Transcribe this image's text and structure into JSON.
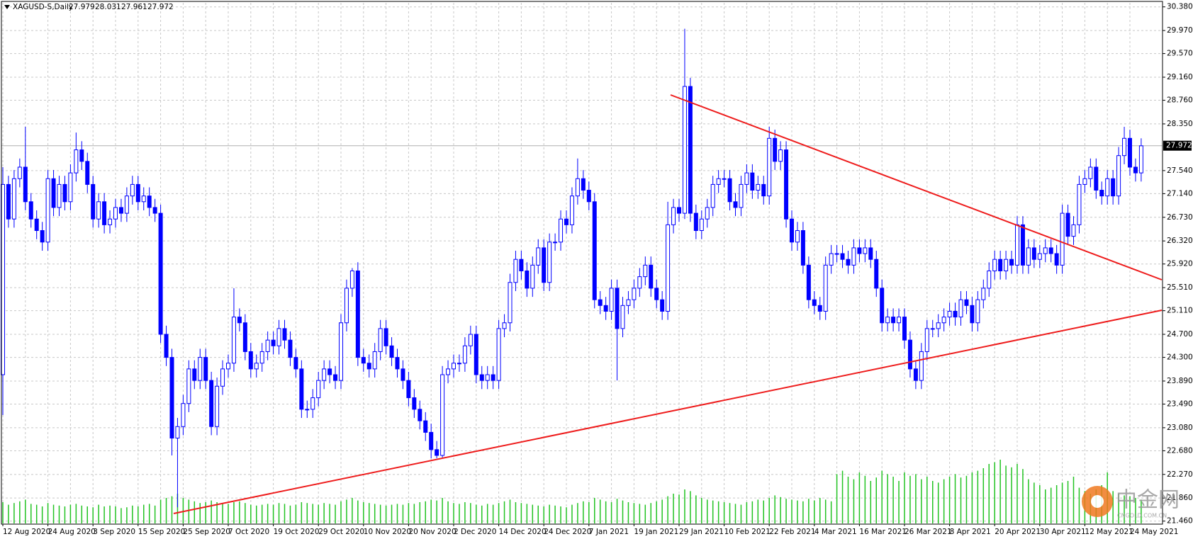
{
  "chart_data": {
    "type": "candlestick",
    "title": "XAGUSD-S,Daily",
    "header_values": [
      27.979,
      28.031,
      27.961,
      27.972
    ],
    "last_price": 27.972,
    "watermark": "中金网",
    "watermark_sub": "CNGOLD.COM.CN",
    "grid": true,
    "colors": {
      "up_body": "#ffffff",
      "down_body": "#0000ff",
      "wick": "#0000ff",
      "volume": "#22c322",
      "last_line": "#b0b0b0"
    },
    "ylim": [
      21.42,
      30.45
    ],
    "yticks": [
      {
        "value": 30.38,
        "label": "30.380"
      },
      {
        "value": 29.97,
        "label": "29.970"
      },
      {
        "value": 29.57,
        "label": "29.570"
      },
      {
        "value": 29.16,
        "label": "29.160"
      },
      {
        "value": 28.76,
        "label": "28.760"
      },
      {
        "value": 28.35,
        "label": "28.350"
      },
      {
        "value": 27.54,
        "label": "27.540"
      },
      {
        "value": 27.14,
        "label": "27.140"
      },
      {
        "value": 26.73,
        "label": "26.730"
      },
      {
        "value": 26.32,
        "label": "26.320"
      },
      {
        "value": 25.92,
        "label": "25.920"
      },
      {
        "value": 25.51,
        "label": "25.510"
      },
      {
        "value": 25.11,
        "label": "25.110"
      },
      {
        "value": 24.7,
        "label": "24.700"
      },
      {
        "value": 24.3,
        "label": "24.300"
      },
      {
        "value": 23.89,
        "label": "23.890"
      },
      {
        "value": 23.49,
        "label": "23.490"
      },
      {
        "value": 23.08,
        "label": "23.080"
      },
      {
        "value": 22.68,
        "label": "22.680"
      },
      {
        "value": 22.27,
        "label": "22.270"
      },
      {
        "value": 21.86,
        "label": "21.860"
      },
      {
        "value": 21.46,
        "label": "21.460"
      }
    ],
    "categories": [
      "12 Aug 2020",
      null,
      null,
      null,
      null,
      null,
      null,
      null,
      "24 Aug 2020",
      null,
      null,
      null,
      null,
      null,
      null,
      null,
      "3 Sep 2020",
      null,
      null,
      null,
      null,
      null,
      null,
      null,
      "15 Sep 2020",
      null,
      null,
      null,
      null,
      null,
      null,
      null,
      "25 Sep 2020",
      null,
      null,
      null,
      null,
      null,
      null,
      null,
      "7 Oct 2020",
      null,
      null,
      null,
      null,
      null,
      null,
      null,
      "19 Oct 2020",
      null,
      null,
      null,
      null,
      null,
      null,
      null,
      "29 Oct 2020",
      null,
      null,
      null,
      null,
      null,
      null,
      null,
      "10 Nov 2020",
      null,
      null,
      null,
      null,
      null,
      null,
      null,
      "20 Nov 2020",
      null,
      null,
      null,
      null,
      null,
      null,
      null,
      "2 Dec 2020",
      null,
      null,
      null,
      null,
      null,
      null,
      null,
      "14 Dec 2020",
      null,
      null,
      null,
      null,
      null,
      null,
      null,
      "24 Dec 2020",
      null,
      null,
      null,
      null,
      null,
      null,
      null,
      "7 Jan 2021",
      null,
      null,
      null,
      null,
      null,
      null,
      null,
      "19 Jan 2021",
      null,
      null,
      null,
      null,
      null,
      null,
      null,
      "29 Jan 2021",
      null,
      null,
      null,
      null,
      null,
      null,
      null,
      "10 Feb 2021",
      null,
      null,
      null,
      null,
      null,
      null,
      null,
      "22 Feb 2021",
      null,
      null,
      null,
      null,
      null,
      null,
      null,
      "4 Mar 2021",
      null,
      null,
      null,
      null,
      null,
      null,
      null,
      "16 Mar 2021",
      null,
      null,
      null,
      null,
      null,
      null,
      null,
      "26 Mar 2021",
      null,
      null,
      null,
      null,
      null,
      null,
      null,
      "8 Apr 2021",
      null,
      null,
      null,
      null,
      null,
      null,
      null,
      "20 Apr 2021",
      null,
      null,
      null,
      null,
      null,
      null,
      null,
      "30 Apr 2021",
      null,
      null,
      null,
      null,
      null,
      null,
      null,
      "12 May 2021",
      null,
      null,
      null,
      null,
      null,
      null,
      null,
      "24 May 2021",
      null,
      null
    ],
    "open": [
      24.0,
      27.3,
      26.7,
      27.4,
      27.6,
      27.0,
      26.7,
      26.5,
      26.3,
      27.4,
      26.9,
      27.3,
      27.0,
      27.5,
      27.9,
      27.7,
      27.3,
      26.7,
      27.0,
      26.6,
      26.7,
      26.9,
      26.8,
      27.1,
      27.3,
      27.0,
      27.1,
      26.9,
      26.8,
      24.7,
      24.3,
      22.9,
      23.1,
      23.5,
      24.1,
      23.9,
      24.3,
      23.9,
      23.1,
      23.8,
      24.1,
      24.2,
      25.0,
      24.9,
      24.4,
      24.1,
      24.2,
      24.4,
      24.6,
      24.5,
      24.8,
      24.6,
      24.3,
      24.1,
      23.4,
      23.4,
      23.6,
      23.9,
      24.1,
      24.0,
      23.9,
      24.9,
      25.5,
      25.8,
      24.3,
      24.2,
      24.1,
      24.4,
      24.8,
      24.5,
      24.3,
      24.1,
      23.9,
      23.6,
      23.4,
      23.2,
      23.0,
      22.7,
      22.6,
      24.0,
      24.1,
      24.2,
      24.2,
      24.5,
      24.7,
      24.0,
      23.9,
      24.0,
      23.9,
      24.8,
      24.9,
      25.6,
      26.0,
      25.8,
      25.5,
      25.9,
      26.2,
      25.6,
      26.3,
      26.3,
      26.7,
      26.6,
      27.1,
      27.4,
      27.2,
      27.0,
      25.3,
      25.2,
      25.1,
      25.5,
      24.8,
      25.2,
      25.3,
      25.5,
      25.7,
      25.9,
      25.5,
      25.3,
      25.1,
      26.6,
      26.9,
      26.8,
      29.0,
      26.8,
      26.5,
      26.7,
      26.9,
      27.3,
      27.4,
      27.4,
      27.0,
      26.9,
      27.3,
      27.5,
      27.2,
      27.3,
      27.1,
      28.1,
      27.7,
      27.9,
      26.7,
      26.3,
      26.5,
      25.9,
      25.3,
      25.2,
      25.1,
      25.9,
      26.1,
      26.1,
      26.0,
      25.9,
      26.2,
      26.1,
      26.2,
      26.0,
      25.5,
      24.9,
      25.0,
      24.9,
      25.0,
      24.6,
      24.1,
      23.9,
      24.4,
      24.8,
      24.8,
      24.9,
      25.0,
      25.1,
      25.0,
      25.3,
      25.2,
      24.9,
      25.3,
      25.5,
      25.8,
      26.0,
      25.8,
      26.0,
      25.9,
      26.6,
      25.9,
      26.2,
      26.0,
      26.1,
      26.2,
      26.1,
      25.9,
      26.8,
      26.4,
      26.6,
      27.3,
      27.4,
      27.6,
      27.2,
      27.1,
      27.4,
      27.1,
      27.8,
      28.1,
      27.6,
      27.5
    ],
    "high": [
      27.6,
      27.45,
      27.55,
      27.75,
      28.3,
      27.15,
      26.85,
      26.65,
      27.55,
      27.55,
      27.45,
      27.45,
      27.65,
      28.2,
      28.05,
      27.85,
      27.45,
      27.15,
      27.15,
      26.85,
      27.05,
      27.05,
      27.25,
      27.45,
      27.45,
      27.25,
      27.25,
      27.05,
      26.95,
      24.85,
      24.45,
      23.25,
      23.65,
      24.25,
      24.25,
      24.45,
      24.45,
      24.05,
      23.95,
      24.25,
      24.35,
      25.5,
      25.15,
      25.05,
      24.55,
      24.35,
      24.55,
      24.75,
      24.75,
      24.95,
      24.95,
      24.75,
      24.45,
      24.25,
      23.55,
      23.75,
      24.05,
      24.25,
      24.25,
      24.15,
      25.05,
      25.65,
      25.85,
      25.95,
      24.45,
      24.35,
      24.55,
      24.95,
      24.95,
      24.65,
      24.45,
      24.25,
      24.05,
      23.75,
      23.55,
      23.35,
      23.15,
      22.85,
      24.15,
      24.25,
      24.35,
      24.35,
      24.65,
      24.85,
      24.85,
      24.15,
      24.15,
      24.15,
      24.95,
      25.05,
      25.75,
      26.15,
      26.15,
      25.95,
      26.05,
      26.35,
      26.35,
      26.45,
      26.45,
      26.85,
      26.85,
      27.25,
      27.75,
      27.55,
      27.35,
      27.15,
      25.45,
      25.35,
      25.65,
      25.65,
      25.35,
      25.45,
      25.65,
      25.85,
      26.05,
      26.05,
      25.65,
      25.45,
      27.0,
      27.05,
      27.05,
      30.0,
      29.15,
      26.95,
      26.85,
      27.05,
      27.45,
      27.55,
      27.55,
      27.55,
      27.15,
      27.45,
      27.65,
      27.65,
      27.45,
      27.45,
      28.3,
      28.25,
      28.05,
      28.05,
      26.85,
      26.65,
      26.65,
      26.05,
      25.45,
      25.35,
      26.05,
      26.25,
      26.25,
      26.25,
      26.15,
      26.35,
      26.35,
      26.35,
      26.35,
      26.15,
      25.65,
      25.15,
      25.15,
      25.15,
      25.15,
      24.75,
      24.25,
      24.55,
      24.95,
      24.95,
      25.05,
      25.15,
      25.25,
      25.25,
      25.45,
      25.45,
      25.35,
      25.45,
      25.65,
      25.95,
      26.15,
      26.15,
      26.15,
      26.15,
      26.75,
      26.75,
      26.35,
      26.35,
      26.25,
      26.35,
      26.35,
      26.25,
      26.95,
      26.95,
      26.75,
      27.45,
      27.55,
      27.75,
      27.75,
      27.35,
      27.55,
      27.55,
      27.95,
      28.3,
      28.25,
      27.75,
      28.1
    ],
    "low": [
      23.3,
      26.55,
      26.55,
      27.25,
      26.85,
      26.55,
      26.35,
      26.15,
      26.15,
      26.75,
      26.75,
      26.85,
      26.85,
      27.35,
      27.55,
      27.15,
      26.55,
      26.55,
      26.45,
      26.45,
      26.55,
      26.65,
      26.65,
      26.95,
      26.85,
      26.85,
      26.75,
      26.65,
      24.55,
      24.15,
      22.6,
      21.7,
      22.95,
      23.35,
      23.75,
      23.75,
      23.75,
      22.95,
      22.95,
      23.65,
      23.95,
      24.05,
      24.75,
      24.25,
      23.95,
      23.95,
      24.05,
      24.25,
      24.35,
      24.35,
      24.45,
      24.15,
      23.95,
      23.25,
      23.25,
      23.25,
      23.45,
      23.75,
      23.85,
      23.75,
      23.75,
      24.75,
      25.35,
      24.15,
      24.05,
      23.95,
      23.95,
      24.25,
      24.35,
      24.15,
      23.95,
      23.75,
      23.45,
      23.25,
      23.05,
      22.85,
      22.55,
      22.55,
      22.55,
      23.85,
      23.95,
      24.05,
      24.05,
      24.35,
      23.85,
      23.75,
      23.75,
      23.75,
      23.75,
      24.65,
      24.75,
      25.45,
      25.65,
      25.35,
      25.35,
      25.75,
      25.45,
      25.45,
      26.15,
      26.15,
      26.45,
      26.45,
      26.95,
      27.05,
      26.85,
      25.15,
      25.05,
      24.95,
      24.95,
      23.9,
      24.65,
      25.05,
      25.15,
      25.35,
      25.55,
      25.35,
      25.15,
      24.95,
      24.95,
      26.45,
      26.65,
      26.7,
      26.65,
      26.35,
      26.35,
      26.55,
      26.75,
      27.15,
      27.25,
      26.85,
      26.75,
      26.75,
      27.15,
      27.05,
      27.05,
      26.95,
      26.95,
      27.55,
      27.55,
      26.55,
      26.15,
      26.15,
      25.75,
      25.15,
      25.05,
      24.95,
      24.95,
      25.75,
      25.95,
      25.85,
      25.75,
      25.75,
      25.95,
      25.95,
      25.85,
      25.35,
      24.75,
      24.75,
      24.75,
      24.75,
      24.45,
      23.95,
      23.75,
      23.75,
      24.25,
      24.65,
      24.65,
      24.75,
      24.85,
      24.85,
      24.85,
      25.05,
      24.75,
      24.75,
      25.15,
      25.35,
      25.65,
      25.65,
      25.65,
      25.75,
      25.75,
      25.75,
      25.75,
      25.85,
      25.85,
      25.95,
      25.95,
      25.75,
      25.75,
      26.25,
      26.25,
      26.45,
      27.15,
      27.25,
      27.05,
      26.95,
      26.95,
      26.95,
      26.95,
      27.65,
      27.45,
      27.35,
      27.35
    ],
    "close": [
      27.3,
      26.7,
      27.4,
      27.6,
      27.0,
      26.7,
      26.5,
      26.3,
      27.4,
      26.9,
      27.3,
      27.0,
      27.5,
      27.9,
      27.7,
      27.3,
      26.7,
      27.0,
      26.6,
      26.7,
      26.9,
      26.8,
      27.1,
      27.3,
      27.0,
      27.1,
      26.9,
      26.8,
      24.7,
      24.3,
      22.9,
      23.1,
      23.5,
      24.1,
      23.9,
      24.3,
      23.9,
      23.1,
      23.8,
      24.1,
      24.2,
      25.0,
      24.9,
      24.4,
      24.1,
      24.2,
      24.4,
      24.6,
      24.5,
      24.8,
      24.6,
      24.3,
      24.1,
      23.4,
      23.4,
      23.6,
      23.9,
      24.1,
      24.0,
      23.9,
      24.9,
      25.5,
      25.8,
      24.3,
      24.2,
      24.1,
      24.4,
      24.8,
      24.5,
      24.3,
      24.1,
      23.9,
      23.6,
      23.4,
      23.2,
      23.0,
      22.7,
      22.6,
      24.0,
      24.1,
      24.2,
      24.2,
      24.5,
      24.7,
      24.0,
      23.9,
      24.0,
      23.9,
      24.8,
      24.9,
      25.6,
      26.0,
      25.8,
      25.5,
      25.9,
      26.2,
      25.6,
      26.3,
      26.3,
      26.7,
      26.6,
      27.1,
      27.4,
      27.2,
      27.0,
      25.3,
      25.2,
      25.1,
      25.5,
      24.8,
      25.2,
      25.3,
      25.5,
      25.7,
      25.9,
      25.5,
      25.3,
      25.1,
      26.6,
      26.9,
      26.8,
      29.0,
      26.8,
      26.5,
      26.7,
      26.9,
      27.3,
      27.4,
      27.4,
      27.0,
      26.9,
      27.3,
      27.5,
      27.2,
      27.3,
      27.1,
      28.1,
      27.7,
      27.9,
      26.7,
      26.3,
      26.5,
      25.9,
      25.3,
      25.2,
      25.1,
      25.9,
      26.1,
      26.1,
      26.0,
      25.9,
      26.2,
      26.1,
      26.2,
      26.0,
      25.5,
      24.9,
      25.0,
      24.9,
      25.0,
      24.6,
      24.1,
      23.9,
      24.4,
      24.8,
      24.8,
      24.9,
      25.0,
      25.1,
      25.0,
      25.3,
      25.2,
      24.9,
      25.3,
      25.5,
      25.8,
      26.0,
      25.8,
      26.0,
      25.9,
      26.6,
      25.9,
      26.2,
      26.0,
      26.1,
      26.2,
      26.1,
      25.9,
      26.8,
      26.4,
      26.6,
      27.3,
      27.4,
      27.6,
      27.2,
      27.1,
      27.4,
      27.1,
      27.8,
      28.1,
      27.6,
      27.5,
      27.97
    ],
    "volume": [
      25,
      22,
      24,
      26,
      28,
      23,
      22,
      20,
      24,
      22,
      21,
      20,
      22,
      23,
      21,
      20,
      19,
      22,
      20,
      21,
      20,
      18,
      19,
      21,
      20,
      22,
      23,
      21,
      28,
      30,
      32,
      35,
      30,
      28,
      26,
      24,
      25,
      27,
      25,
      24,
      23,
      25,
      26,
      24,
      22,
      21,
      22,
      23,
      22,
      24,
      23,
      21,
      22,
      25,
      24,
      23,
      22,
      24,
      23,
      22,
      26,
      28,
      30,
      27,
      25,
      24,
      23,
      22,
      21,
      22,
      23,
      22,
      24,
      23,
      25,
      26,
      28,
      27,
      30,
      26,
      24,
      23,
      25,
      24,
      22,
      21,
      23,
      22,
      24,
      26,
      28,
      25,
      24,
      23,
      22,
      21,
      20,
      22,
      21,
      20,
      19,
      22,
      24,
      26,
      25,
      30,
      28,
      26,
      25,
      29,
      27,
      25,
      24,
      23,
      22,
      24,
      26,
      28,
      32,
      35,
      34,
      40,
      38,
      33,
      30,
      28,
      27,
      26,
      25,
      24,
      23,
      22,
      25,
      26,
      28,
      27,
      30,
      33,
      31,
      29,
      28,
      27,
      26,
      29,
      27,
      30,
      28,
      26,
      58,
      62,
      55,
      52,
      60,
      56,
      50,
      54,
      62,
      58,
      55,
      50,
      60,
      56,
      58,
      52,
      55,
      50,
      48,
      52,
      55,
      58,
      54,
      56,
      60,
      62,
      65,
      70,
      72,
      75,
      68,
      66,
      70,
      64,
      52,
      48,
      45,
      40,
      42,
      45,
      48,
      50,
      55,
      42,
      38,
      35,
      40,
      45,
      60,
      38,
      35,
      33,
      32,
      30,
      28
    ]
  }
}
